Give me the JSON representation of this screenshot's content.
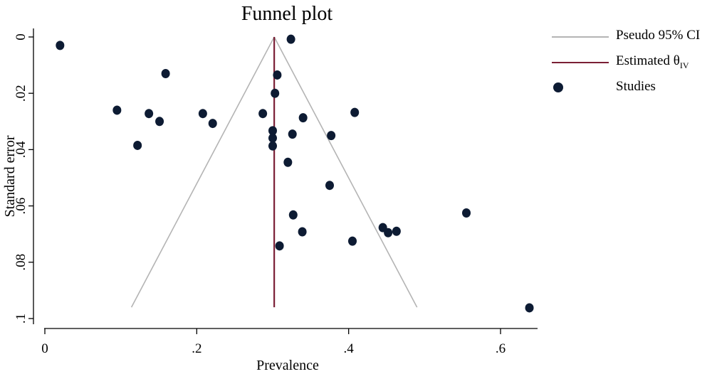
{
  "chart_data": {
    "type": "scatter",
    "title": "Funnel plot",
    "xlabel": "Prevalence",
    "ylabel": "Standard error",
    "xlim": [
      0,
      0.65
    ],
    "ylim": [
      0.1,
      0
    ],
    "y_axis_reversed": true,
    "x_ticks": [
      {
        "value": 0,
        "label": "0"
      },
      {
        "value": 0.2,
        "label": ".2"
      },
      {
        "value": 0.4,
        "label": ".4"
      },
      {
        "value": 0.6,
        "label": ".6"
      }
    ],
    "y_ticks": [
      {
        "value": 0,
        "label": "0"
      },
      {
        "value": 0.02,
        "label": ".02"
      },
      {
        "value": 0.04,
        "label": ".04"
      },
      {
        "value": 0.06,
        "label": ".06"
      },
      {
        "value": 0.08,
        "label": ".08"
      },
      {
        "value": 0.1,
        "label": ".1"
      }
    ],
    "grid": false,
    "legend_position": "right",
    "estimated_theta": 0.302,
    "pseudo_ci": {
      "apex": [
        0.302,
        0
      ],
      "lower_at_max_se": [
        0.114,
        0.096
      ],
      "upper_at_max_se": [
        0.49,
        0.096
      ]
    },
    "legend": [
      {
        "label": "Pseudo 95% CI",
        "marker": "line",
        "color": "#b4b4b4"
      },
      {
        "label": "Estimated θ",
        "subscript": "IV",
        "marker": "line",
        "color": "#7a1f35"
      },
      {
        "label": "Studies",
        "marker": "dot",
        "color": "#0d1b33"
      }
    ],
    "series": [
      {
        "name": "Studies",
        "points": [
          {
            "x": 0.02,
            "y": 0.003
          },
          {
            "x": 0.095,
            "y": 0.026
          },
          {
            "x": 0.122,
            "y": 0.0385
          },
          {
            "x": 0.137,
            "y": 0.0272
          },
          {
            "x": 0.151,
            "y": 0.03
          },
          {
            "x": 0.159,
            "y": 0.013
          },
          {
            "x": 0.208,
            "y": 0.0272
          },
          {
            "x": 0.221,
            "y": 0.0307
          },
          {
            "x": 0.287,
            "y": 0.0272
          },
          {
            "x": 0.3,
            "y": 0.0333
          },
          {
            "x": 0.3,
            "y": 0.0359
          },
          {
            "x": 0.3,
            "y": 0.0387
          },
          {
            "x": 0.303,
            "y": 0.02
          },
          {
            "x": 0.306,
            "y": 0.0135
          },
          {
            "x": 0.309,
            "y": 0.0742
          },
          {
            "x": 0.32,
            "y": 0.0445
          },
          {
            "x": 0.324,
            "y": 0.0008
          },
          {
            "x": 0.326,
            "y": 0.0345
          },
          {
            "x": 0.327,
            "y": 0.0632
          },
          {
            "x": 0.339,
            "y": 0.0692
          },
          {
            "x": 0.34,
            "y": 0.0287
          },
          {
            "x": 0.375,
            "y": 0.0527
          },
          {
            "x": 0.377,
            "y": 0.035
          },
          {
            "x": 0.405,
            "y": 0.0725
          },
          {
            "x": 0.408,
            "y": 0.0268
          },
          {
            "x": 0.445,
            "y": 0.0677
          },
          {
            "x": 0.452,
            "y": 0.0695
          },
          {
            "x": 0.463,
            "y": 0.069
          },
          {
            "x": 0.555,
            "y": 0.0625
          },
          {
            "x": 0.638,
            "y": 0.0962
          }
        ]
      }
    ]
  }
}
